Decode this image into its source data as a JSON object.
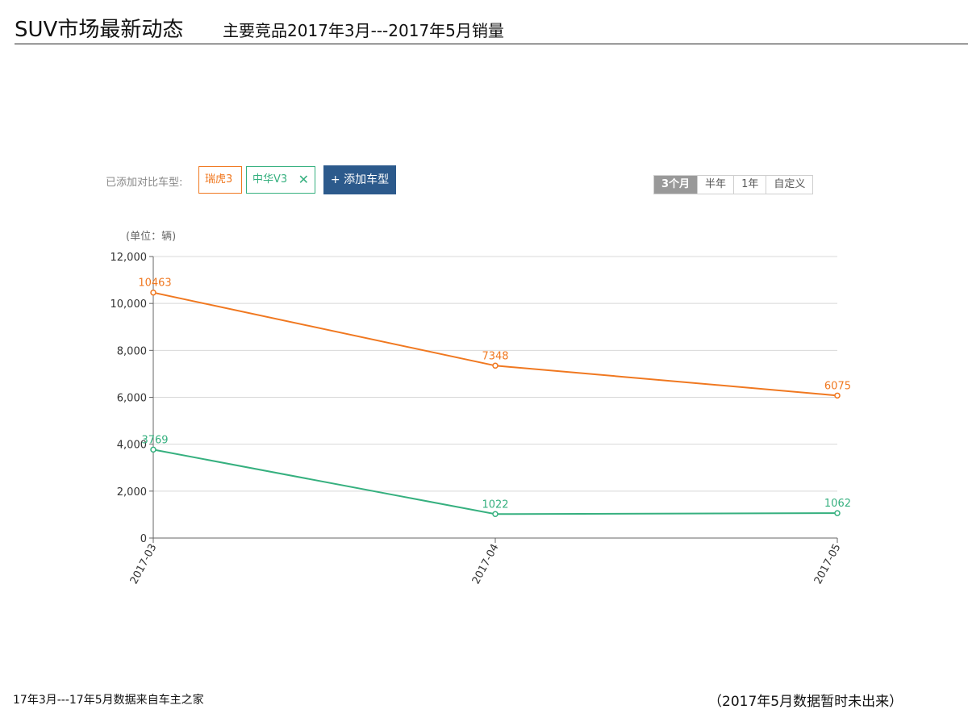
{
  "header": {
    "title": "SUV市场最新动态",
    "subtitle": "主要竞品2017年3月---2017年5月销量"
  },
  "toolbar": {
    "label": "已添加对比车型:",
    "tags": [
      {
        "label": "瑞虎3",
        "color": "#f07820"
      },
      {
        "label": "中华V3",
        "color": "#36b07f",
        "close": "✕"
      }
    ],
    "add_button": "+ 添加车型",
    "ranges": [
      "3个月",
      "半年",
      "1年",
      "自定义"
    ],
    "active_range": "3个月"
  },
  "chart_data": {
    "type": "line",
    "unit_label": "(单位：辆)",
    "x": [
      "2017-03",
      "2017-04",
      "2017-05"
    ],
    "ylim": [
      0,
      12000
    ],
    "yticks": [
      "0",
      "2,000",
      "4,000",
      "6,000",
      "8,000",
      "10,000",
      "12,000"
    ],
    "ytick_values": [
      0,
      2000,
      4000,
      6000,
      8000,
      10000,
      12000
    ],
    "grid": true,
    "series": [
      {
        "name": "瑞虎3",
        "color": "#f07820",
        "values": [
          10463,
          7348,
          6075
        ],
        "labels": [
          "10463",
          "7348",
          "6075"
        ]
      },
      {
        "name": "中华V3",
        "color": "#36b07f",
        "values": [
          3769,
          1022,
          1062
        ],
        "labels": [
          "3769",
          "1022",
          "1062"
        ]
      }
    ]
  },
  "footer": {
    "source": "17年3月---17年5月数据来自车主之家",
    "note": "（2017年5月数据暂时未出来）"
  }
}
